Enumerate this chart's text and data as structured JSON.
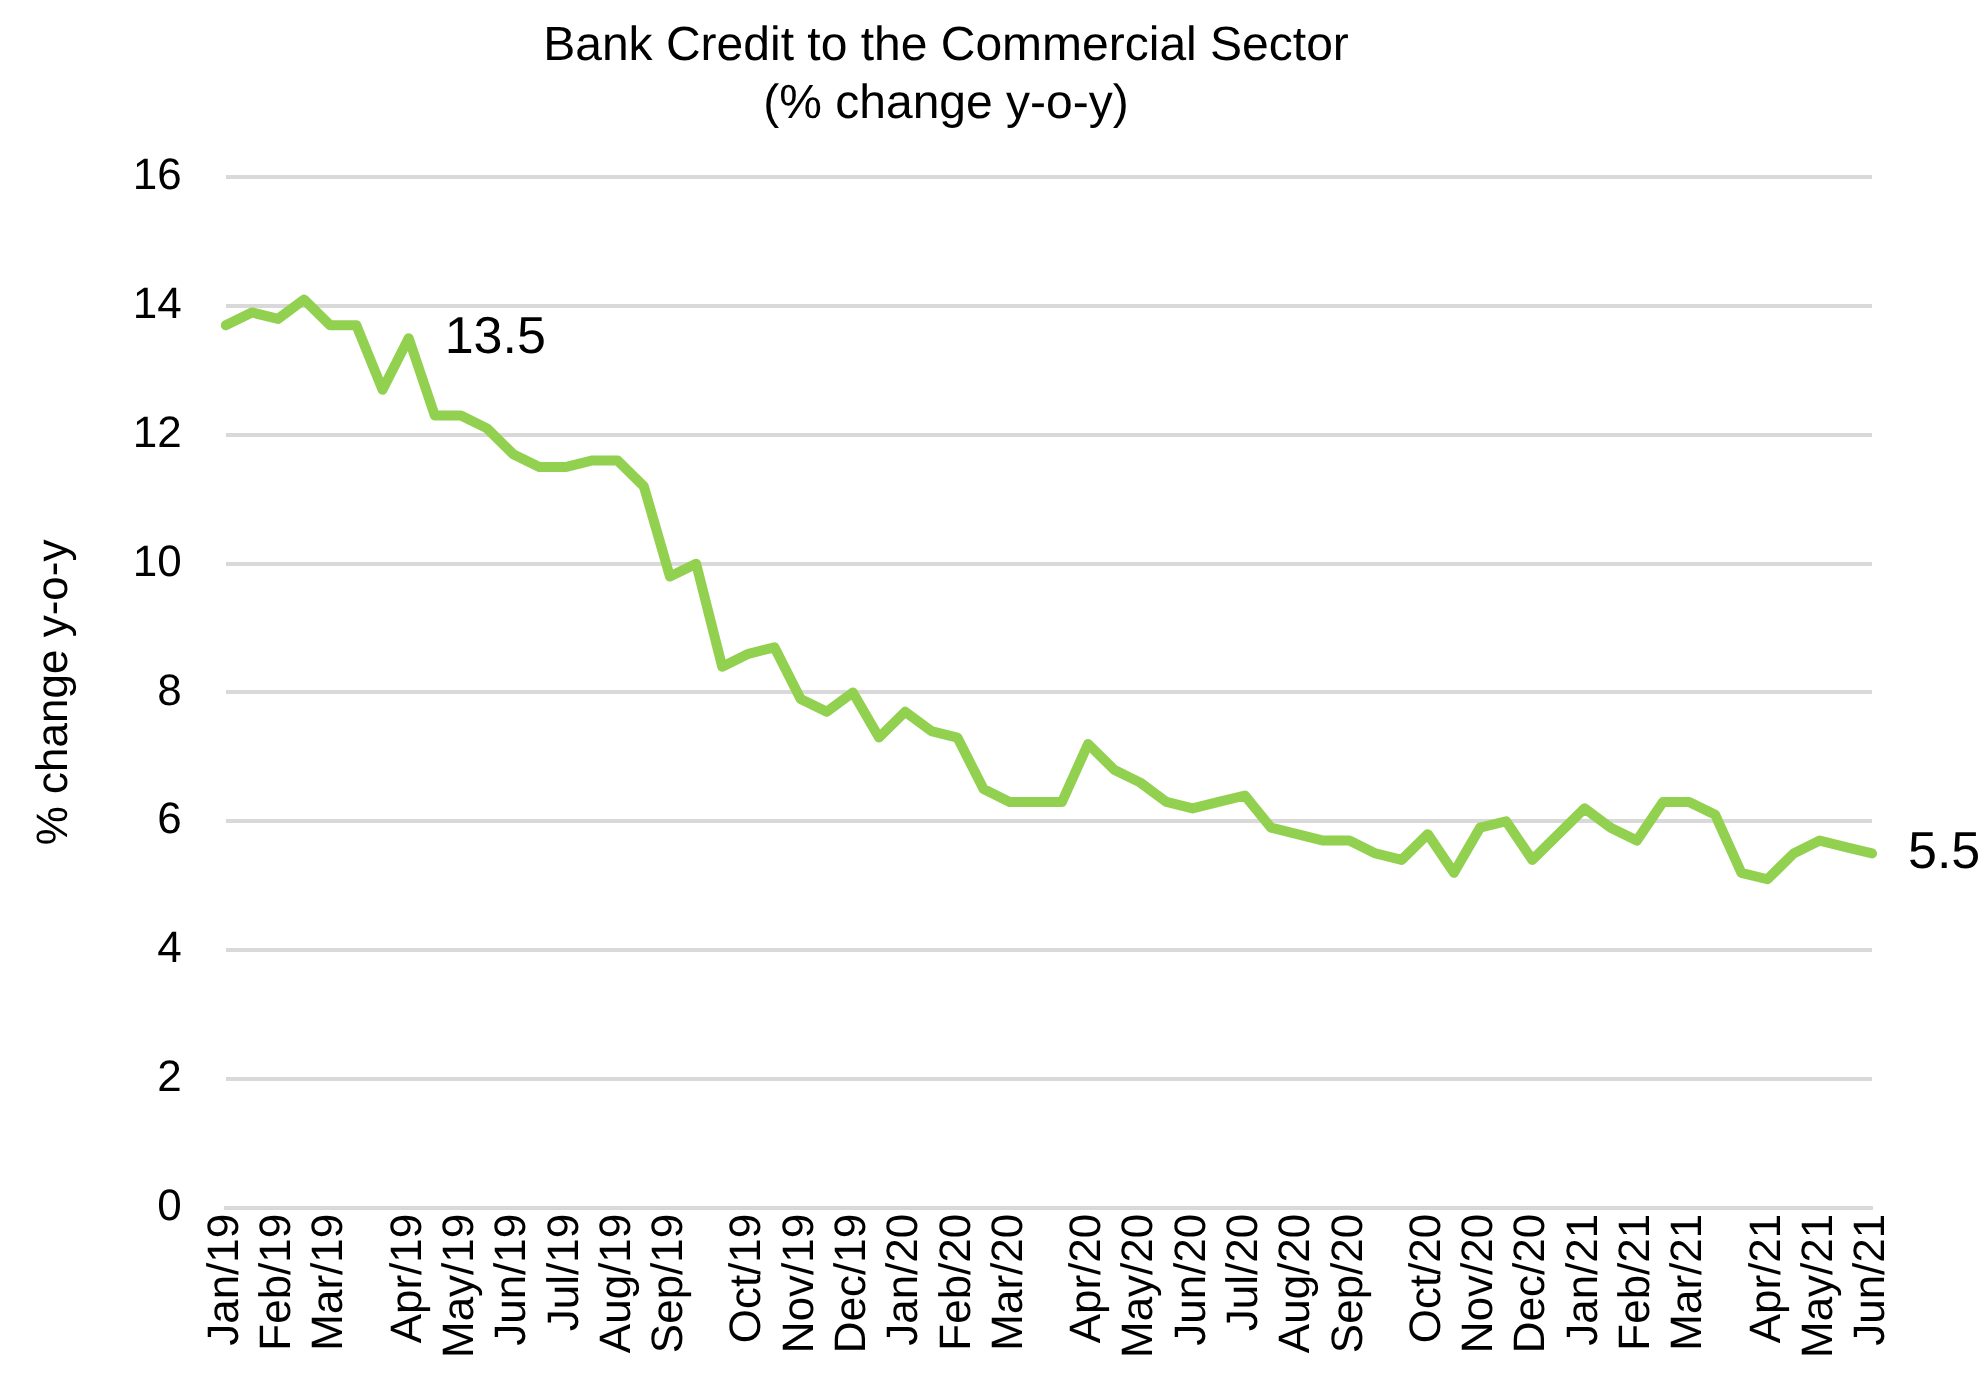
{
  "chart_data": {
    "type": "line",
    "title": "Bank Credit to the Commercial Sector",
    "subtitle": "(% change y-o-y)",
    "ylabel": "% change y-o-y",
    "categories": [
      "Jan/19",
      null,
      "Feb/19",
      null,
      "Mar/19",
      null,
      null,
      "Apr/19",
      null,
      "May/19",
      null,
      "Jun/19",
      null,
      "Jul/19",
      null,
      "Aug/19",
      null,
      "Sep/19",
      null,
      null,
      "Oct/19",
      null,
      "Nov/19",
      null,
      "Dec/19",
      null,
      "Jan/20",
      null,
      "Feb/20",
      null,
      "Mar/20",
      null,
      null,
      "Apr/20",
      null,
      "May/20",
      null,
      "Jun/20",
      null,
      "Jul/20",
      null,
      "Aug/20",
      null,
      "Sep/20",
      null,
      null,
      "Oct/20",
      null,
      "Nov/20",
      null,
      "Dec/20",
      null,
      "Jan/21",
      null,
      "Feb/21",
      null,
      "Mar/21",
      null,
      null,
      "Apr/21",
      null,
      "May/21",
      null,
      "Jun/21"
    ],
    "series": [
      {
        "color": "#92d050",
        "values": [
          13.7,
          13.9,
          13.8,
          14.1,
          13.7,
          13.7,
          12.7,
          13.5,
          12.3,
          12.3,
          12.1,
          11.7,
          11.5,
          11.5,
          11.6,
          11.6,
          11.2,
          9.8,
          10.0,
          8.4,
          8.6,
          8.7,
          7.9,
          7.7,
          8.0,
          7.3,
          7.7,
          7.4,
          7.3,
          6.5,
          6.3,
          6.3,
          6.3,
          7.2,
          6.8,
          6.6,
          6.3,
          6.2,
          6.3,
          6.4,
          5.9,
          5.8,
          5.7,
          5.7,
          5.5,
          5.4,
          5.8,
          5.2,
          5.9,
          6.0,
          5.4,
          5.8,
          6.2,
          5.9,
          5.7,
          6.3,
          6.3,
          6.1,
          5.2,
          5.1,
          5.5,
          5.7,
          5.6,
          5.5
        ]
      }
    ],
    "ylim": [
      0,
      16
    ],
    "yticks": [
      0,
      2,
      4,
      6,
      8,
      10,
      12,
      14,
      16
    ],
    "grid": "y",
    "legend": false,
    "marker": "none",
    "line_style": "solid",
    "annotations": [
      {
        "text": "13.5",
        "x": "Apr/19",
        "y": 13.5
      },
      {
        "text": "5.5",
        "x": "Jun/21",
        "y": 5.5
      }
    ]
  }
}
